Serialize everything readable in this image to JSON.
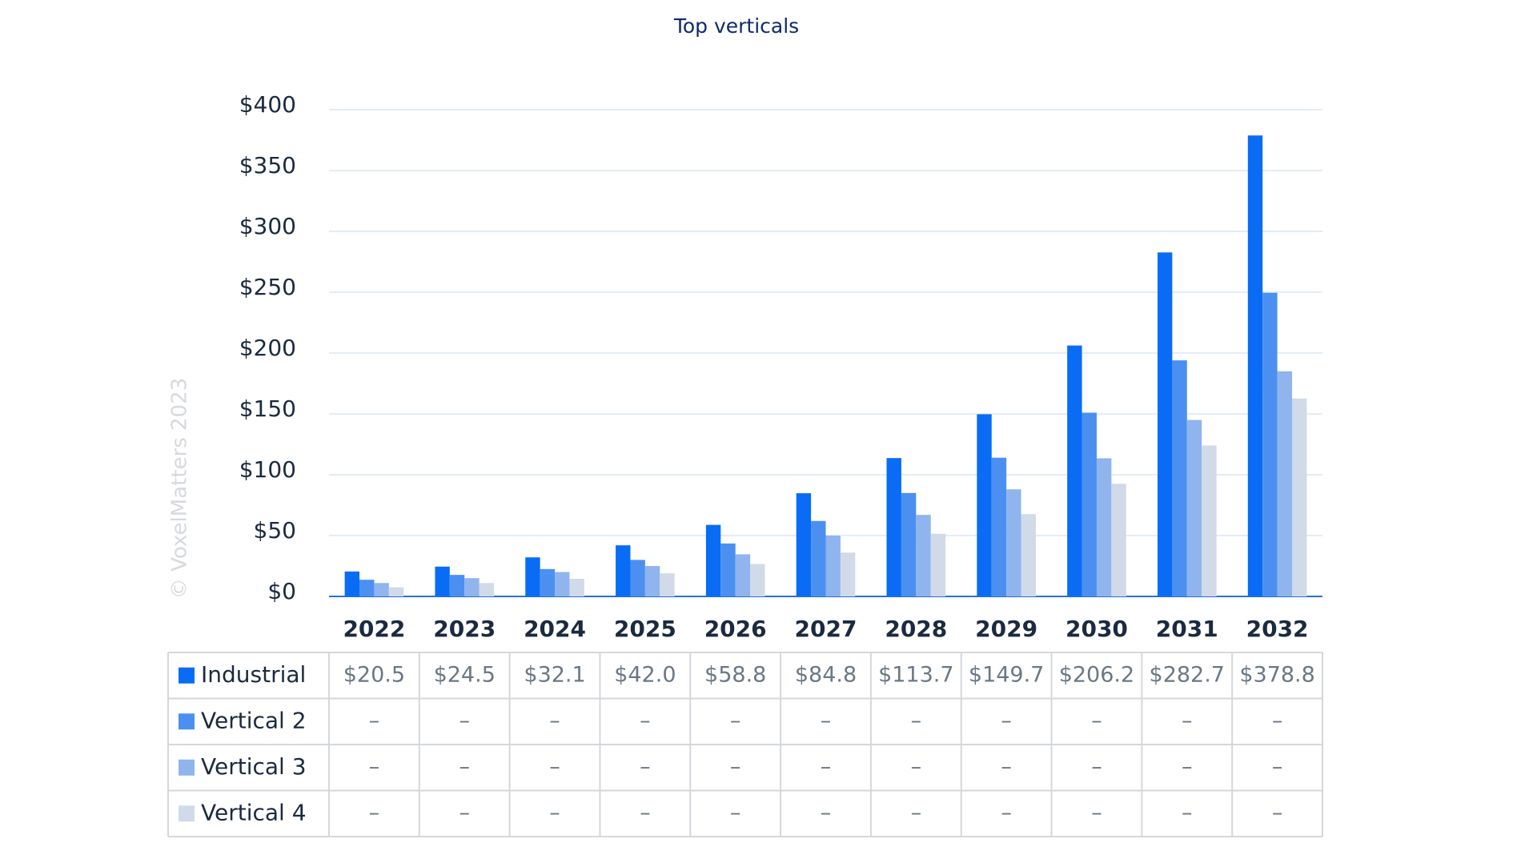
{
  "chart_data": {
    "type": "bar",
    "title": "Top verticals",
    "watermark": "© VoxelMatters 2023",
    "categories": [
      "2022",
      "2023",
      "2024",
      "2025",
      "2026",
      "2027",
      "2028",
      "2029",
      "2030",
      "2031",
      "2032"
    ],
    "series": [
      {
        "name": "Industrial",
        "color": "#0a6cf5",
        "values": [
          20.5,
          24.5,
          32.1,
          42.0,
          58.8,
          84.8,
          113.7,
          149.7,
          206.2,
          282.7,
          378.8
        ],
        "value_labels": [
          "$20.5",
          "$24.5",
          "$32.1",
          "$42.0",
          "$58.8",
          "$84.8",
          "$113.7",
          "$149.7",
          "$206.2",
          "$282.7",
          "$378.8"
        ]
      },
      {
        "name": "Vertical 2",
        "color": "#4b90f0",
        "values": [
          13.7,
          17.7,
          22.5,
          30,
          43.5,
          62,
          85,
          114,
          151,
          194,
          249.5
        ],
        "value_labels": [
          "–",
          "–",
          "–",
          "–",
          "–",
          "–",
          "–",
          "–",
          "–",
          "–",
          "–"
        ]
      },
      {
        "name": "Vertical 3",
        "color": "#8fb4ee",
        "values": [
          11,
          15,
          20,
          25,
          34.6,
          50,
          67,
          88,
          113.5,
          145,
          185
        ],
        "value_labels": [
          "–",
          "–",
          "–",
          "–",
          "–",
          "–",
          "–",
          "–",
          "–",
          "–",
          "–"
        ]
      },
      {
        "name": "Vertical 4",
        "color": "#d0dae9",
        "values": [
          7.5,
          11,
          14.5,
          19,
          26.6,
          36,
          51.5,
          67.6,
          92.6,
          124,
          162.6
        ],
        "value_labels": [
          "–",
          "–",
          "–",
          "–",
          "–",
          "–",
          "–",
          "–",
          "–",
          "–",
          "–"
        ]
      }
    ],
    "ylim": [
      0,
      400
    ],
    "yticks": [
      {
        "value": 0,
        "label": "$0"
      },
      {
        "value": 50,
        "label": "$50"
      },
      {
        "value": 100,
        "label": "$100"
      },
      {
        "value": 150,
        "label": "$150"
      },
      {
        "value": 200,
        "label": "$200"
      },
      {
        "value": 250,
        "label": "$250"
      },
      {
        "value": 300,
        "label": "$300"
      },
      {
        "value": 350,
        "label": "$350"
      },
      {
        "value": 400,
        "label": "$400"
      }
    ],
    "grid": true
  }
}
